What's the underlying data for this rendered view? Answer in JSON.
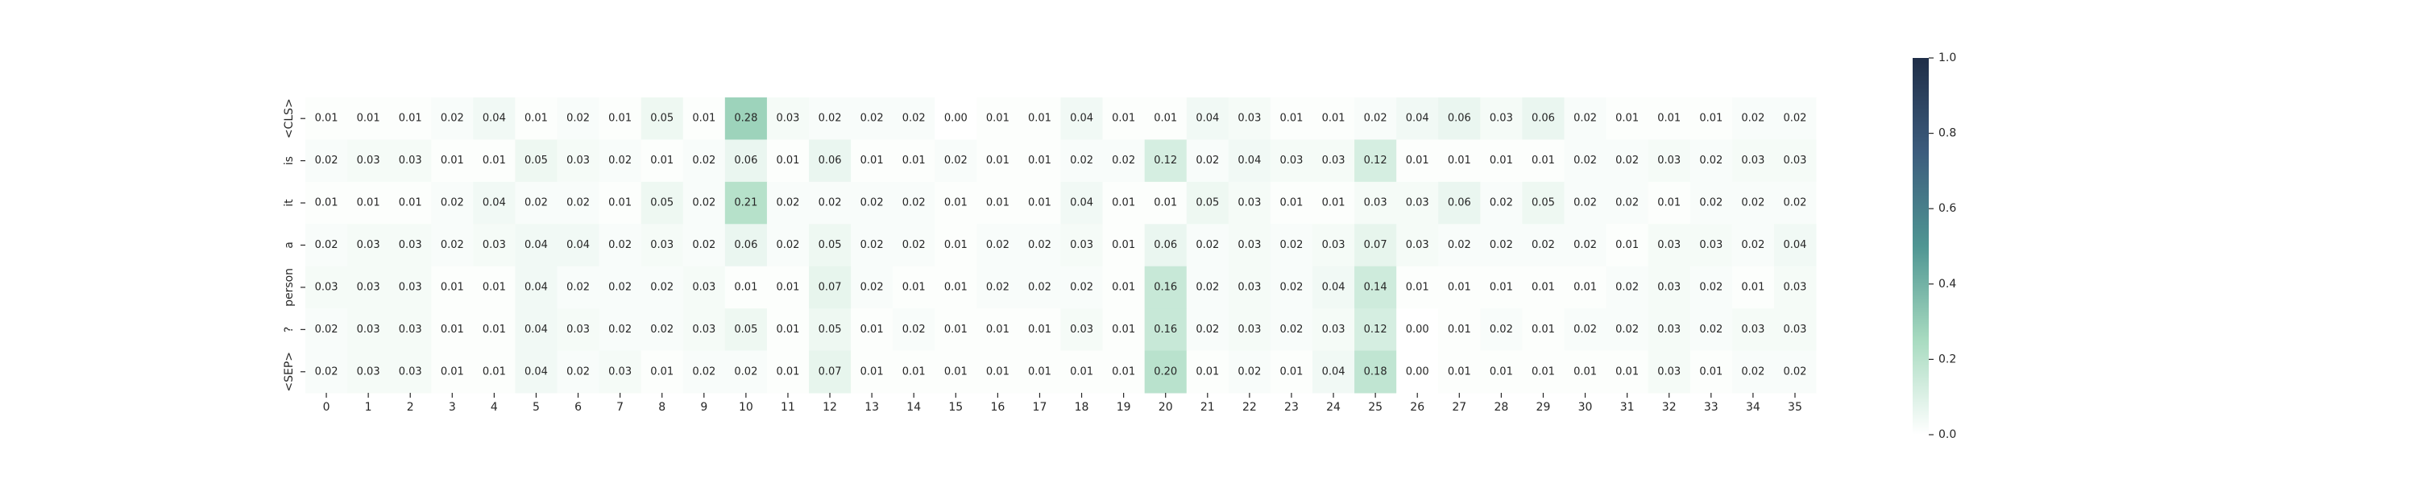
{
  "chart_data": {
    "type": "heatmap",
    "title": "",
    "xlabel": "",
    "ylabel": "",
    "x_categories": [
      "0",
      "1",
      "2",
      "3",
      "4",
      "5",
      "6",
      "7",
      "8",
      "9",
      "10",
      "11",
      "12",
      "13",
      "14",
      "15",
      "16",
      "17",
      "18",
      "19",
      "20",
      "21",
      "22",
      "23",
      "24",
      "25",
      "26",
      "27",
      "28",
      "29",
      "30",
      "31",
      "32",
      "33",
      "34",
      "35"
    ],
    "y_categories": [
      "<CLS>",
      "is",
      "it",
      "a",
      "person",
      "?",
      "<SEP>"
    ],
    "values": [
      [
        0.01,
        0.01,
        0.01,
        0.02,
        0.04,
        0.01,
        0.02,
        0.01,
        0.05,
        0.01,
        0.28,
        0.03,
        0.02,
        0.02,
        0.02,
        0.0,
        0.01,
        0.01,
        0.04,
        0.01,
        0.01,
        0.04,
        0.03,
        0.01,
        0.01,
        0.02,
        0.04,
        0.06,
        0.03,
        0.06,
        0.02,
        0.01,
        0.01,
        0.01,
        0.02,
        0.02
      ],
      [
        0.02,
        0.03,
        0.03,
        0.01,
        0.01,
        0.05,
        0.03,
        0.02,
        0.01,
        0.02,
        0.06,
        0.01,
        0.06,
        0.01,
        0.01,
        0.02,
        0.01,
        0.01,
        0.02,
        0.02,
        0.12,
        0.02,
        0.04,
        0.03,
        0.03,
        0.12,
        0.01,
        0.01,
        0.01,
        0.01,
        0.02,
        0.02,
        0.03,
        0.02,
        0.03,
        0.03
      ],
      [
        0.01,
        0.01,
        0.01,
        0.02,
        0.04,
        0.02,
        0.02,
        0.01,
        0.05,
        0.02,
        0.21,
        0.02,
        0.02,
        0.02,
        0.02,
        0.01,
        0.01,
        0.01,
        0.04,
        0.01,
        0.01,
        0.05,
        0.03,
        0.01,
        0.01,
        0.03,
        0.03,
        0.06,
        0.02,
        0.05,
        0.02,
        0.02,
        0.01,
        0.02,
        0.02,
        0.02
      ],
      [
        0.02,
        0.03,
        0.03,
        0.02,
        0.03,
        0.04,
        0.04,
        0.02,
        0.03,
        0.02,
        0.06,
        0.02,
        0.05,
        0.02,
        0.02,
        0.01,
        0.02,
        0.02,
        0.03,
        0.01,
        0.06,
        0.02,
        0.03,
        0.02,
        0.03,
        0.07,
        0.03,
        0.02,
        0.02,
        0.02,
        0.02,
        0.01,
        0.03,
        0.03,
        0.02,
        0.04
      ],
      [
        0.03,
        0.03,
        0.03,
        0.01,
        0.01,
        0.04,
        0.02,
        0.02,
        0.02,
        0.03,
        0.01,
        0.01,
        0.07,
        0.02,
        0.01,
        0.01,
        0.02,
        0.02,
        0.02,
        0.01,
        0.16,
        0.02,
        0.03,
        0.02,
        0.04,
        0.14,
        0.01,
        0.01,
        0.01,
        0.01,
        0.01,
        0.02,
        0.03,
        0.02,
        0.01,
        0.03
      ],
      [
        0.02,
        0.03,
        0.03,
        0.01,
        0.01,
        0.04,
        0.03,
        0.02,
        0.02,
        0.03,
        0.05,
        0.01,
        0.05,
        0.01,
        0.02,
        0.01,
        0.01,
        0.01,
        0.03,
        0.01,
        0.16,
        0.02,
        0.03,
        0.02,
        0.03,
        0.12,
        0.0,
        0.01,
        0.02,
        0.01,
        0.02,
        0.02,
        0.03,
        0.02,
        0.03,
        0.03
      ],
      [
        0.02,
        0.03,
        0.03,
        0.01,
        0.01,
        0.04,
        0.02,
        0.03,
        0.01,
        0.02,
        0.02,
        0.01,
        0.07,
        0.01,
        0.01,
        0.01,
        0.01,
        0.01,
        0.01,
        0.01,
        0.2,
        0.01,
        0.02,
        0.01,
        0.04,
        0.18,
        0.0,
        0.01,
        0.01,
        0.01,
        0.01,
        0.01,
        0.03,
        0.01,
        0.02,
        0.02
      ]
    ],
    "value_format": "0.00",
    "vmin": 0.0,
    "vmax": 1.0,
    "colormap": "light-green-to-dark-navy",
    "colormap_stops": [
      "#ffffff",
      "#a8dbc0",
      "#4f9693",
      "#3c5c7d",
      "#1f2e48"
    ],
    "annotation_color_dark_bg": "#ffffff",
    "annotation_color_light_bg": "#262626",
    "colorbar": {
      "ticks": [
        0.0,
        0.2,
        0.4,
        0.6,
        0.8,
        1.0
      ],
      "tick_labels": [
        "0.0",
        "0.2",
        "0.4",
        "0.6",
        "0.8",
        "1.0"
      ]
    },
    "grid": false,
    "legend": "colorbar-right"
  }
}
